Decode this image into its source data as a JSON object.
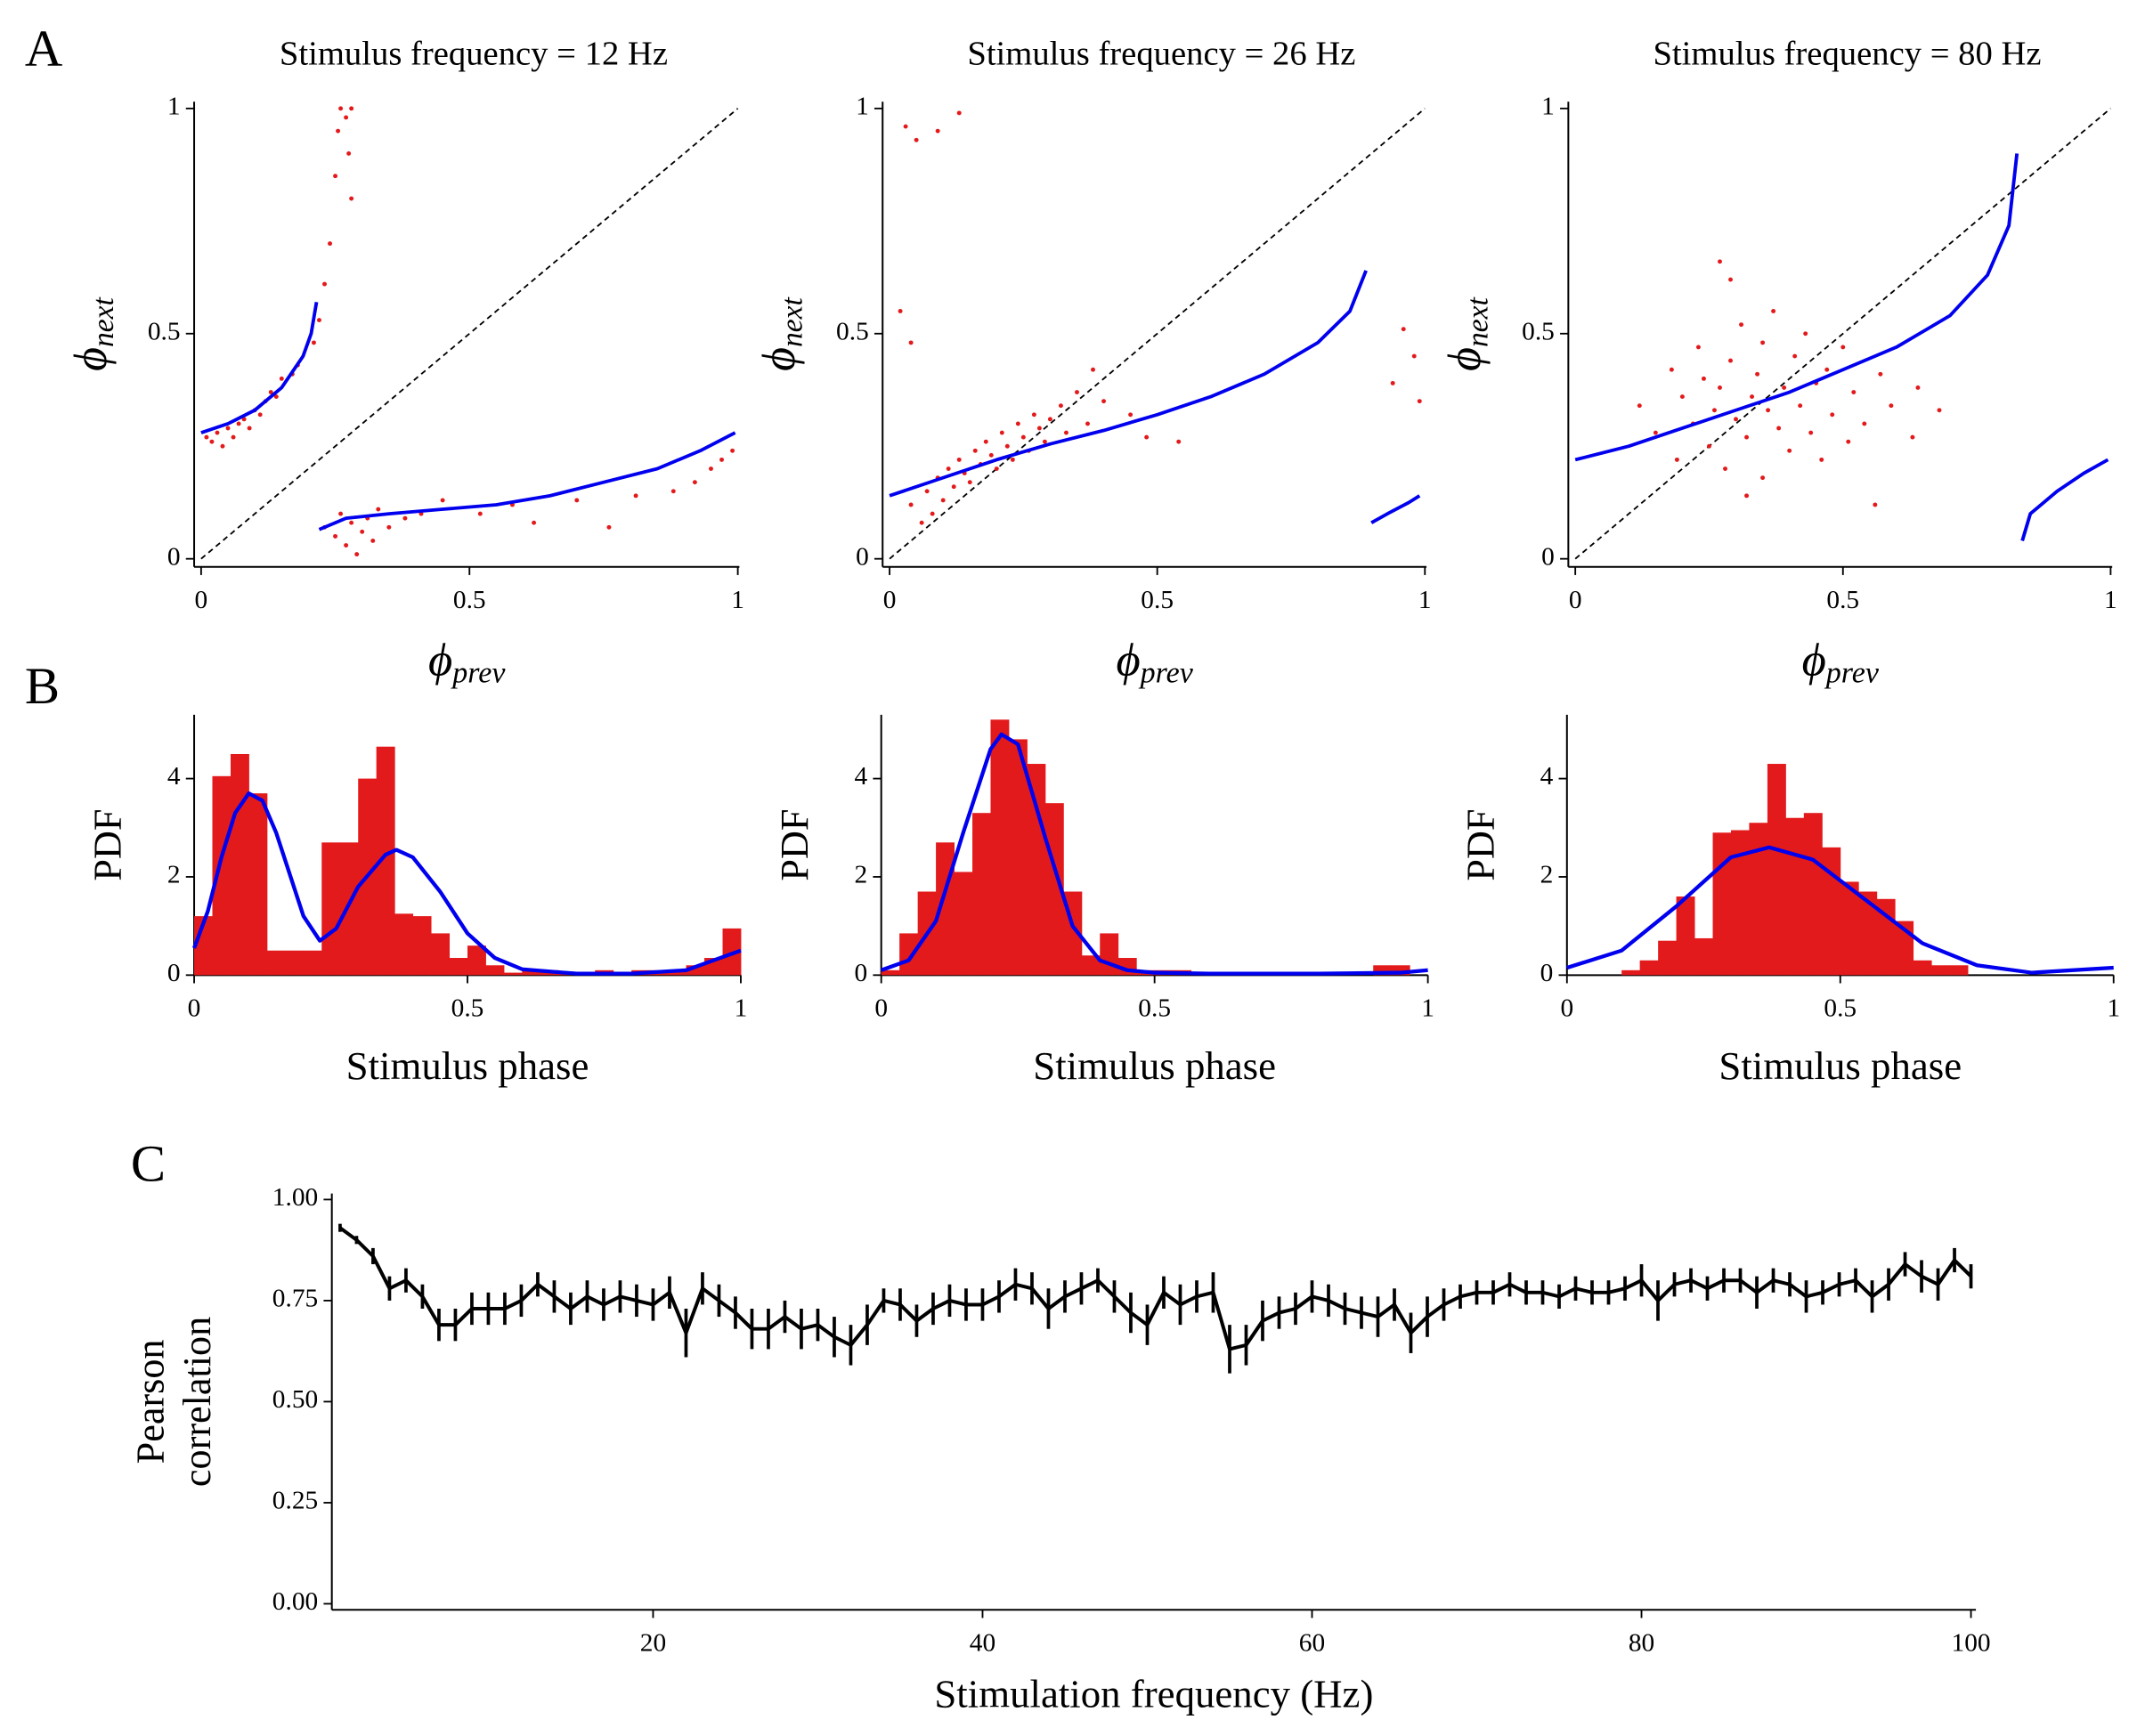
{
  "chart_data": [
    {
      "type": "scatter",
      "panel_label": "A",
      "title": "Stimulus frequency = 12 Hz",
      "xlabel": {
        "symbol": "ϕ",
        "sub": "prev"
      },
      "ylabel": {
        "symbol": "ϕ",
        "sub": "next"
      },
      "xlim": [
        -0.013,
        1.003
      ],
      "ylim": [
        -0.018,
        1.015
      ],
      "xticks": [
        0,
        0.5,
        1
      ],
      "yticks": [
        0,
        0.5,
        1
      ],
      "identity_line": true,
      "points": {
        "color": "#e31a1c",
        "x": [
          0.01,
          0.02,
          0.03,
          0.04,
          0.05,
          0.06,
          0.07,
          0.08,
          0.09,
          0.1,
          0.11,
          0.12,
          0.13,
          0.14,
          0.15,
          0.17,
          0.18,
          0.21,
          0.22,
          0.23,
          0.24,
          0.25,
          0.255,
          0.26,
          0.27,
          0.275,
          0.28,
          0.28,
          0.23,
          0.25,
          0.26,
          0.27,
          0.28,
          0.29,
          0.3,
          0.31,
          0.32,
          0.33,
          0.35,
          0.38,
          0.41,
          0.45,
          0.52,
          0.58,
          0.62,
          0.7,
          0.76,
          0.81,
          0.88,
          0.92,
          0.95,
          0.97,
          0.99
        ],
        "values": [
          0.27,
          0.26,
          0.28,
          0.25,
          0.29,
          0.27,
          0.3,
          0.31,
          0.29,
          0.33,
          0.32,
          0.35,
          0.37,
          0.36,
          0.4,
          0.41,
          0.43,
          0.48,
          0.53,
          0.61,
          0.7,
          0.85,
          0.95,
          1.0,
          0.98,
          0.9,
          0.8,
          1.0,
          0.07,
          0.05,
          0.1,
          0.03,
          0.08,
          0.01,
          0.06,
          0.09,
          0.04,
          0.11,
          0.07,
          0.09,
          0.1,
          0.13,
          0.1,
          0.12,
          0.08,
          0.13,
          0.07,
          0.14,
          0.15,
          0.17,
          0.2,
          0.22,
          0.24
        ]
      },
      "fit": {
        "color": "#0000ee",
        "x": [
          0,
          0.05,
          0.1,
          0.15,
          0.19,
          0.205,
          0.215,
          0.218,
          0.22,
          0.27,
          0.35,
          0.45,
          0.55,
          0.65,
          0.75,
          0.85,
          0.93,
          0.995
        ],
        "values": [
          0.28,
          0.3,
          0.33,
          0.38,
          0.45,
          0.5,
          0.57,
          null,
          0.065,
          0.09,
          0.1,
          0.11,
          0.12,
          0.14,
          0.17,
          0.2,
          0.24,
          0.28
        ]
      }
    },
    {
      "type": "scatter",
      "title": "Stimulus frequency = 26 Hz",
      "xlabel": {
        "symbol": "ϕ",
        "sub": "prev"
      },
      "ylabel": {
        "symbol": "ϕ",
        "sub": "next"
      },
      "xlim": [
        -0.013,
        1.003
      ],
      "ylim": [
        -0.018,
        1.015
      ],
      "xticks": [
        0,
        0.5,
        1
      ],
      "yticks": [
        0,
        0.5,
        1
      ],
      "identity_line": true,
      "points": {
        "color": "#e31a1c",
        "x": [
          0.03,
          0.05,
          0.09,
          0.13,
          0.02,
          0.04,
          0.04,
          0.06,
          0.07,
          0.08,
          0.09,
          0.1,
          0.11,
          0.12,
          0.13,
          0.14,
          0.15,
          0.16,
          0.17,
          0.18,
          0.19,
          0.2,
          0.21,
          0.22,
          0.23,
          0.24,
          0.25,
          0.26,
          0.27,
          0.28,
          0.29,
          0.3,
          0.32,
          0.33,
          0.35,
          0.37,
          0.38,
          0.4,
          0.45,
          0.48,
          0.54,
          0.96,
          0.94,
          0.98,
          0.99
        ],
        "values": [
          0.96,
          0.93,
          0.95,
          0.99,
          0.55,
          0.48,
          0.12,
          0.08,
          0.15,
          0.1,
          0.18,
          0.13,
          0.2,
          0.16,
          0.22,
          0.19,
          0.17,
          0.24,
          0.21,
          0.26,
          0.23,
          0.2,
          0.28,
          0.25,
          0.22,
          0.3,
          0.27,
          0.24,
          0.32,
          0.29,
          0.26,
          0.31,
          0.34,
          0.28,
          0.37,
          0.3,
          0.42,
          0.35,
          0.32,
          0.27,
          0.26,
          0.51,
          0.39,
          0.45,
          0.35
        ]
      },
      "fit": {
        "color": "#0000ee",
        "x": [
          0,
          0.1,
          0.2,
          0.3,
          0.4,
          0.5,
          0.6,
          0.7,
          0.8,
          0.86,
          0.89,
          0.895,
          0.9,
          0.93,
          0.97,
          0.99
        ],
        "values": [
          0.14,
          0.18,
          0.22,
          0.255,
          0.285,
          0.32,
          0.36,
          0.41,
          0.48,
          0.55,
          0.64,
          null,
          0.08,
          0.1,
          0.125,
          0.14
        ]
      }
    },
    {
      "type": "scatter",
      "title": "Stimulus frequency = 80 Hz",
      "xlabel": {
        "symbol": "ϕ",
        "sub": "prev"
      },
      "ylabel": {
        "symbol": "ϕ",
        "sub": "next"
      },
      "xlim": [
        -0.013,
        1.003
      ],
      "ylim": [
        -0.018,
        1.015
      ],
      "xticks": [
        0,
        0.5,
        1
      ],
      "yticks": [
        0,
        0.5,
        1
      ],
      "identity_line": true,
      "points": {
        "color": "#e31a1c",
        "x": [
          0.12,
          0.15,
          0.18,
          0.19,
          0.2,
          0.22,
          0.23,
          0.24,
          0.25,
          0.26,
          0.27,
          0.27,
          0.28,
          0.29,
          0.3,
          0.31,
          0.32,
          0.33,
          0.34,
          0.35,
          0.35,
          0.36,
          0.37,
          0.38,
          0.39,
          0.4,
          0.41,
          0.42,
          0.43,
          0.44,
          0.45,
          0.46,
          0.47,
          0.48,
          0.5,
          0.51,
          0.52,
          0.54,
          0.56,
          0.57,
          0.59,
          0.63,
          0.64,
          0.68,
          0.32,
          0.29
        ],
        "values": [
          0.34,
          0.28,
          0.42,
          0.22,
          0.36,
          0.3,
          0.47,
          0.4,
          0.25,
          0.33,
          0.66,
          0.38,
          0.2,
          0.44,
          0.31,
          0.52,
          0.27,
          0.36,
          0.41,
          0.18,
          0.48,
          0.33,
          0.55,
          0.29,
          0.38,
          0.24,
          0.45,
          0.34,
          0.5,
          0.28,
          0.39,
          0.22,
          0.42,
          0.32,
          0.47,
          0.26,
          0.37,
          0.3,
          0.12,
          0.41,
          0.34,
          0.27,
          0.38,
          0.33,
          0.14,
          0.62
        ]
      },
      "fit": {
        "color": "#0000ee",
        "x": [
          0,
          0.1,
          0.2,
          0.3,
          0.4,
          0.5,
          0.6,
          0.7,
          0.77,
          0.81,
          0.825,
          0.83,
          0.835,
          0.85,
          0.9,
          0.95,
          0.995
        ],
        "values": [
          0.22,
          0.25,
          0.29,
          0.33,
          0.37,
          0.42,
          0.47,
          0.54,
          0.63,
          0.74,
          0.9,
          null,
          0.04,
          0.1,
          0.15,
          0.19,
          0.22
        ]
      }
    },
    {
      "type": "histogram",
      "panel_label": "B",
      "xlabel": "Stimulus phase",
      "ylabel": "PDF",
      "xlim": [
        0,
        1
      ],
      "ylim": [
        0,
        5.3
      ],
      "xticks": [
        0,
        0.5,
        1
      ],
      "yticks": [
        0,
        2,
        4
      ],
      "color": "#e31a1c",
      "bins": [
        0,
        0.0333,
        0.0667,
        0.1,
        0.1333,
        0.1667,
        0.2,
        0.2333,
        0.2667,
        0.3,
        0.3333,
        0.3667,
        0.4,
        0.4333,
        0.4667,
        0.5,
        0.5333,
        0.5667,
        0.6,
        0.6333,
        0.6667,
        0.7,
        0.7333,
        0.7667,
        0.8,
        0.8333,
        0.8667,
        0.9,
        0.9333,
        0.9667,
        1
      ],
      "counts": [
        1.2,
        4.05,
        4.5,
        3.7,
        0.5,
        0.5,
        0.5,
        2.7,
        2.7,
        4.0,
        4.65,
        1.25,
        1.2,
        0.85,
        0.35,
        0.6,
        0.2,
        0.05,
        0.1,
        0.1,
        0.05,
        0,
        0.1,
        0.05,
        0.1,
        0.1,
        0.1,
        0.2,
        0.35,
        0.95
      ],
      "fit": {
        "color": "#0000ee",
        "x": [
          0,
          0.025,
          0.05,
          0.075,
          0.1,
          0.125,
          0.15,
          0.2,
          0.23,
          0.26,
          0.3,
          0.35,
          0.37,
          0.4,
          0.45,
          0.5,
          0.55,
          0.6,
          0.7,
          0.8,
          0.9,
          0.95,
          1
        ],
        "values": [
          0.55,
          1.3,
          2.4,
          3.3,
          3.7,
          3.55,
          2.9,
          1.2,
          0.7,
          0.95,
          1.8,
          2.45,
          2.55,
          2.4,
          1.7,
          0.85,
          0.35,
          0.12,
          0.03,
          0.03,
          0.1,
          0.3,
          0.5
        ]
      }
    },
    {
      "type": "histogram",
      "xlabel": "Stimulus phase",
      "ylabel": "PDF",
      "xlim": [
        0,
        1
      ],
      "ylim": [
        0,
        5.3
      ],
      "xticks": [
        0,
        0.5,
        1
      ],
      "yticks": [
        0,
        2,
        4
      ],
      "color": "#e31a1c",
      "bins": [
        0,
        0.0333,
        0.0667,
        0.1,
        0.1333,
        0.1667,
        0.2,
        0.2333,
        0.2667,
        0.3,
        0.3333,
        0.3667,
        0.4,
        0.4333,
        0.4667,
        0.5,
        0.5333,
        0.5667,
        0.6,
        0.6333,
        0.6667,
        0.7,
        0.7333,
        0.7667,
        0.8,
        0.8333,
        0.8667,
        0.9,
        0.9333,
        0.9667,
        1
      ],
      "counts": [
        0.1,
        0.85,
        1.7,
        2.7,
        2.1,
        3.3,
        5.2,
        4.8,
        4.3,
        3.5,
        1.7,
        0.4,
        0.85,
        0.35,
        0.1,
        0.1,
        0.1,
        0,
        0,
        0,
        0,
        0,
        0,
        0,
        0,
        0,
        0,
        0.2,
        0.2,
        0
      ],
      "fit": {
        "color": "#0000ee",
        "x": [
          0,
          0.05,
          0.1,
          0.15,
          0.2,
          0.22,
          0.25,
          0.3,
          0.35,
          0.4,
          0.45,
          0.5,
          0.6,
          0.8,
          0.95,
          1
        ],
        "values": [
          0.1,
          0.3,
          1.1,
          2.9,
          4.6,
          4.9,
          4.7,
          2.8,
          1.0,
          0.3,
          0.1,
          0.05,
          0.03,
          0.03,
          0.05,
          0.1
        ]
      }
    },
    {
      "type": "histogram",
      "xlabel": "Stimulus phase",
      "ylabel": "PDF",
      "xlim": [
        0,
        1
      ],
      "ylim": [
        0,
        5.3
      ],
      "xticks": [
        0,
        0.5,
        1
      ],
      "yticks": [
        0,
        2,
        4
      ],
      "color": "#e31a1c",
      "bins": [
        0,
        0.0333,
        0.0667,
        0.1,
        0.1333,
        0.1667,
        0.2,
        0.2333,
        0.2667,
        0.3,
        0.3333,
        0.3667,
        0.4,
        0.4333,
        0.4667,
        0.5,
        0.5333,
        0.5667,
        0.6,
        0.6333,
        0.6667,
        0.7,
        0.7333,
        0.7667,
        0.8,
        0.8333,
        0.8667,
        0.9,
        0.9333,
        0.9667,
        1
      ],
      "counts": [
        0,
        0,
        0,
        0.1,
        0.3,
        0.7,
        1.6,
        0.75,
        2.9,
        2.95,
        3.1,
        4.3,
        3.2,
        3.3,
        2.6,
        1.9,
        1.7,
        1.55,
        1.1,
        0.3,
        0.2,
        0.2,
        0,
        0,
        0,
        0,
        0,
        0,
        0,
        0
      ],
      "fit": {
        "color": "#0000ee",
        "x": [
          0,
          0.1,
          0.2,
          0.3,
          0.37,
          0.45,
          0.55,
          0.65,
          0.75,
          0.85,
          1
        ],
        "values": [
          0.15,
          0.5,
          1.4,
          2.4,
          2.6,
          2.35,
          1.5,
          0.65,
          0.2,
          0.05,
          0.15
        ]
      }
    },
    {
      "type": "line",
      "panel_label": "C",
      "xlabel": "Stimulation frequency (Hz)",
      "ylabel": [
        "Pearson",
        "correlation"
      ],
      "xlim": [
        0.5,
        100.3
      ],
      "ylim": [
        -0.015,
        1.015
      ],
      "xticks": [
        20,
        40,
        60,
        80,
        100
      ],
      "yticks": [
        {
          "value": 0,
          "label": "0.00"
        },
        {
          "value": 0.25,
          "label": "0.25"
        },
        {
          "value": 0.5,
          "label": "0.50"
        },
        {
          "value": 0.75,
          "label": "0.75"
        },
        {
          "value": 1,
          "label": "1.00"
        }
      ],
      "series": [
        {
          "color": "#000000",
          "x": [
            1,
            2,
            3,
            4,
            5,
            6,
            7,
            8,
            9,
            10,
            11,
            12,
            13,
            14,
            15,
            16,
            17,
            18,
            19,
            20,
            21,
            22,
            23,
            24,
            25,
            26,
            27,
            28,
            29,
            30,
            31,
            32,
            33,
            34,
            35,
            36,
            37,
            38,
            39,
            40,
            41,
            42,
            43,
            44,
            45,
            46,
            47,
            48,
            49,
            50,
            51,
            52,
            53,
            54,
            55,
            56,
            57,
            58,
            59,
            60,
            61,
            62,
            63,
            64,
            65,
            66,
            67,
            68,
            69,
            70,
            71,
            72,
            73,
            74,
            75,
            76,
            77,
            78,
            79,
            80,
            81,
            82,
            83,
            84,
            85,
            86,
            87,
            88,
            89,
            90,
            91,
            92,
            93,
            94,
            95,
            96,
            97,
            98,
            99,
            100
          ],
          "values": [
            0.93,
            0.9,
            0.86,
            0.78,
            0.8,
            0.76,
            0.69,
            0.69,
            0.73,
            0.73,
            0.73,
            0.75,
            0.79,
            0.76,
            0.73,
            0.76,
            0.74,
            0.76,
            0.75,
            0.74,
            0.77,
            0.67,
            0.78,
            0.75,
            0.72,
            0.68,
            0.68,
            0.71,
            0.68,
            0.69,
            0.66,
            0.64,
            0.69,
            0.75,
            0.74,
            0.7,
            0.73,
            0.75,
            0.74,
            0.74,
            0.76,
            0.79,
            0.78,
            0.73,
            0.76,
            0.78,
            0.8,
            0.76,
            0.72,
            0.69,
            0.77,
            0.74,
            0.76,
            0.77,
            0.63,
            0.64,
            0.7,
            0.72,
            0.73,
            0.76,
            0.75,
            0.73,
            0.72,
            0.71,
            0.74,
            0.67,
            0.71,
            0.74,
            0.76,
            0.77,
            0.77,
            0.79,
            0.77,
            0.77,
            0.76,
            0.78,
            0.77,
            0.77,
            0.78,
            0.8,
            0.75,
            0.79,
            0.8,
            0.78,
            0.8,
            0.8,
            0.77,
            0.8,
            0.79,
            0.76,
            0.77,
            0.79,
            0.8,
            0.76,
            0.79,
            0.84,
            0.81,
            0.79,
            0.85,
            0.81
          ],
          "errors": [
            0.01,
            0.01,
            0.02,
            0.03,
            0.03,
            0.03,
            0.04,
            0.04,
            0.04,
            0.04,
            0.04,
            0.04,
            0.03,
            0.04,
            0.04,
            0.04,
            0.04,
            0.04,
            0.04,
            0.04,
            0.04,
            0.06,
            0.04,
            0.04,
            0.04,
            0.05,
            0.05,
            0.04,
            0.05,
            0.04,
            0.05,
            0.05,
            0.05,
            0.03,
            0.04,
            0.04,
            0.04,
            0.04,
            0.04,
            0.04,
            0.04,
            0.04,
            0.04,
            0.05,
            0.04,
            0.04,
            0.03,
            0.04,
            0.05,
            0.05,
            0.04,
            0.05,
            0.04,
            0.05,
            0.06,
            0.05,
            0.05,
            0.04,
            0.04,
            0.04,
            0.04,
            0.04,
            0.04,
            0.05,
            0.04,
            0.05,
            0.05,
            0.04,
            0.03,
            0.03,
            0.03,
            0.03,
            0.03,
            0.03,
            0.03,
            0.03,
            0.03,
            0.03,
            0.03,
            0.04,
            0.05,
            0.03,
            0.03,
            0.03,
            0.03,
            0.03,
            0.04,
            0.03,
            0.03,
            0.04,
            0.03,
            0.03,
            0.03,
            0.04,
            0.04,
            0.03,
            0.04,
            0.04,
            0.03,
            0.03
          ]
        }
      ]
    }
  ]
}
